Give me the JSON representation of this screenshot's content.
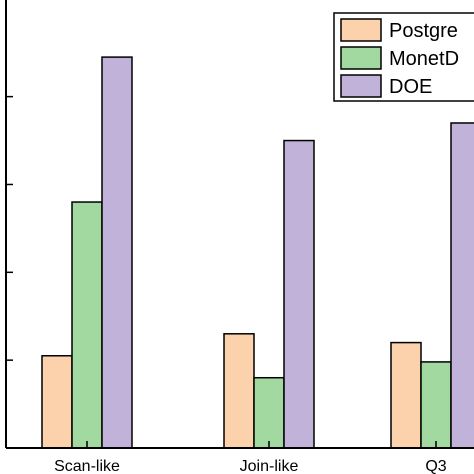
{
  "chart_data": {
    "type": "bar",
    "categories": [
      "Scan-like",
      "Join-like",
      "Q3"
    ],
    "series": [
      {
        "name": "Postgre",
        "values": [
          1.05,
          1.3,
          1.2
        ],
        "color": "#FCD2AC"
      },
      {
        "name": "MonetD",
        "values": [
          2.8,
          0.8,
          0.98
        ],
        "color": "#A2D9A0"
      },
      {
        "name": "DOE",
        "values": [
          4.45,
          3.5,
          3.7
        ],
        "color": "#C0B2D9"
      }
    ],
    "ylim": [
      0,
      5.1
    ],
    "y_ticks": [
      1,
      2,
      3,
      4
    ],
    "legend_position": "top-right",
    "grid": false
  }
}
